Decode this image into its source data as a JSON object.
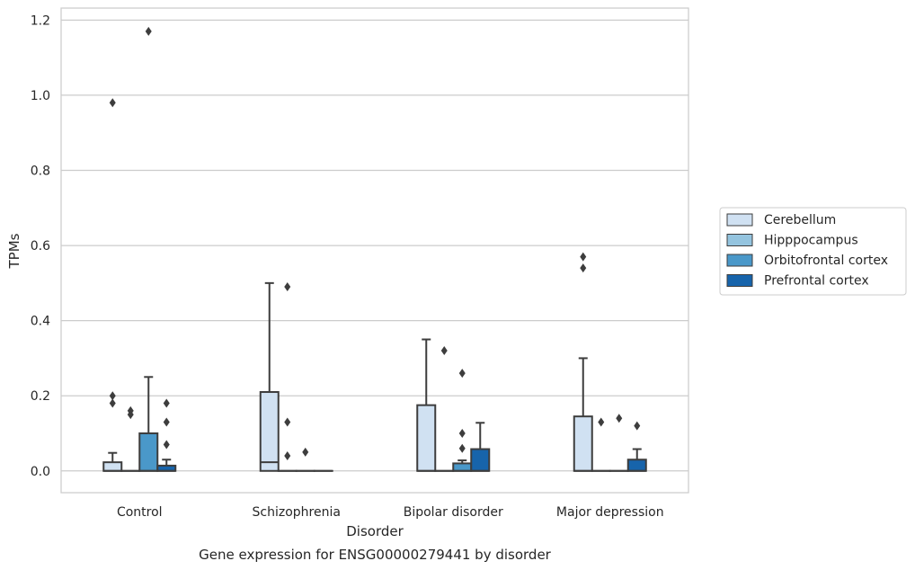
{
  "chart_data": {
    "type": "boxplot",
    "title": "Gene expression for ENSG00000279441 by disorder",
    "xlabel": "Disorder",
    "ylabel": "TPMs",
    "ylim": [
      -0.058,
      1.232
    ],
    "yticks": [
      0.0,
      0.2,
      0.4,
      0.6,
      0.8,
      1.0,
      1.2
    ],
    "ytick_labels": [
      "0.0",
      "0.2",
      "0.4",
      "0.6",
      "0.8",
      "1.0",
      "1.2"
    ],
    "grid": "horizontal",
    "legend_position": "right",
    "categories": [
      "Control",
      "Schizophrenia",
      "Bipolar disorder",
      "Major depression"
    ],
    "series": [
      {
        "name": "Cerebellum",
        "color": "#d0e1f2",
        "boxes": [
          {
            "q1": 0.0,
            "median": 0.0,
            "q3": 0.023,
            "whisker_low": 0.0,
            "whisker_high": 0.048,
            "outliers": [
              0.98,
              0.2,
              0.18
            ]
          },
          {
            "q1": 0.0,
            "median": 0.023,
            "q3": 0.21,
            "whisker_low": 0.0,
            "whisker_high": 0.5,
            "outliers": []
          },
          {
            "q1": 0.0,
            "median": 0.0,
            "q3": 0.175,
            "whisker_low": 0.0,
            "whisker_high": 0.35,
            "outliers": []
          },
          {
            "q1": 0.0,
            "median": 0.0,
            "q3": 0.145,
            "whisker_low": 0.0,
            "whisker_high": 0.3,
            "outliers": [
              0.57,
              0.54
            ]
          }
        ]
      },
      {
        "name": "Hipppocampus",
        "color": "#94c4df",
        "boxes": [
          {
            "q1": 0.0,
            "median": 0.0,
            "q3": 0.0,
            "whisker_low": 0.0,
            "whisker_high": 0.0,
            "outliers": [
              0.16,
              0.15
            ]
          },
          {
            "q1": 0.0,
            "median": 0.0,
            "q3": 0.0,
            "whisker_low": 0.0,
            "whisker_high": 0.0,
            "outliers": [
              0.49,
              0.13,
              0.04
            ]
          },
          {
            "q1": 0.0,
            "median": 0.0,
            "q3": 0.0,
            "whisker_low": 0.0,
            "whisker_high": 0.0,
            "outliers": [
              0.32
            ]
          },
          {
            "q1": 0.0,
            "median": 0.0,
            "q3": 0.0,
            "whisker_low": 0.0,
            "whisker_high": 0.0,
            "outliers": [
              0.13
            ]
          }
        ]
      },
      {
        "name": "Orbitofrontal cortex",
        "color": "#4a98c9",
        "boxes": [
          {
            "q1": 0.0,
            "median": 0.0,
            "q3": 0.1,
            "whisker_low": 0.0,
            "whisker_high": 0.25,
            "outliers": [
              1.17
            ]
          },
          {
            "q1": 0.0,
            "median": 0.0,
            "q3": 0.0,
            "whisker_low": 0.0,
            "whisker_high": 0.0,
            "outliers": [
              0.05
            ]
          },
          {
            "q1": 0.0,
            "median": 0.0,
            "q3": 0.02,
            "whisker_low": 0.0,
            "whisker_high": 0.028,
            "outliers": [
              0.26,
              0.1,
              0.06
            ]
          },
          {
            "q1": 0.0,
            "median": 0.0,
            "q3": 0.0,
            "whisker_low": 0.0,
            "whisker_high": 0.0,
            "outliers": [
              0.14
            ]
          }
        ]
      },
      {
        "name": "Prefrontal cortex",
        "color": "#1764ab",
        "boxes": [
          {
            "q1": 0.0,
            "median": 0.0,
            "q3": 0.014,
            "whisker_low": 0.0,
            "whisker_high": 0.03,
            "outliers": [
              0.18,
              0.13,
              0.07
            ]
          },
          {
            "q1": 0.0,
            "median": 0.0,
            "q3": 0.0,
            "whisker_low": 0.0,
            "whisker_high": 0.0,
            "outliers": []
          },
          {
            "q1": 0.0,
            "median": 0.0,
            "q3": 0.058,
            "whisker_low": 0.0,
            "whisker_high": 0.128,
            "outliers": []
          },
          {
            "q1": 0.0,
            "median": 0.0,
            "q3": 0.03,
            "whisker_low": 0.0,
            "whisker_high": 0.058,
            "outliers": [
              0.12
            ]
          }
        ]
      }
    ]
  }
}
